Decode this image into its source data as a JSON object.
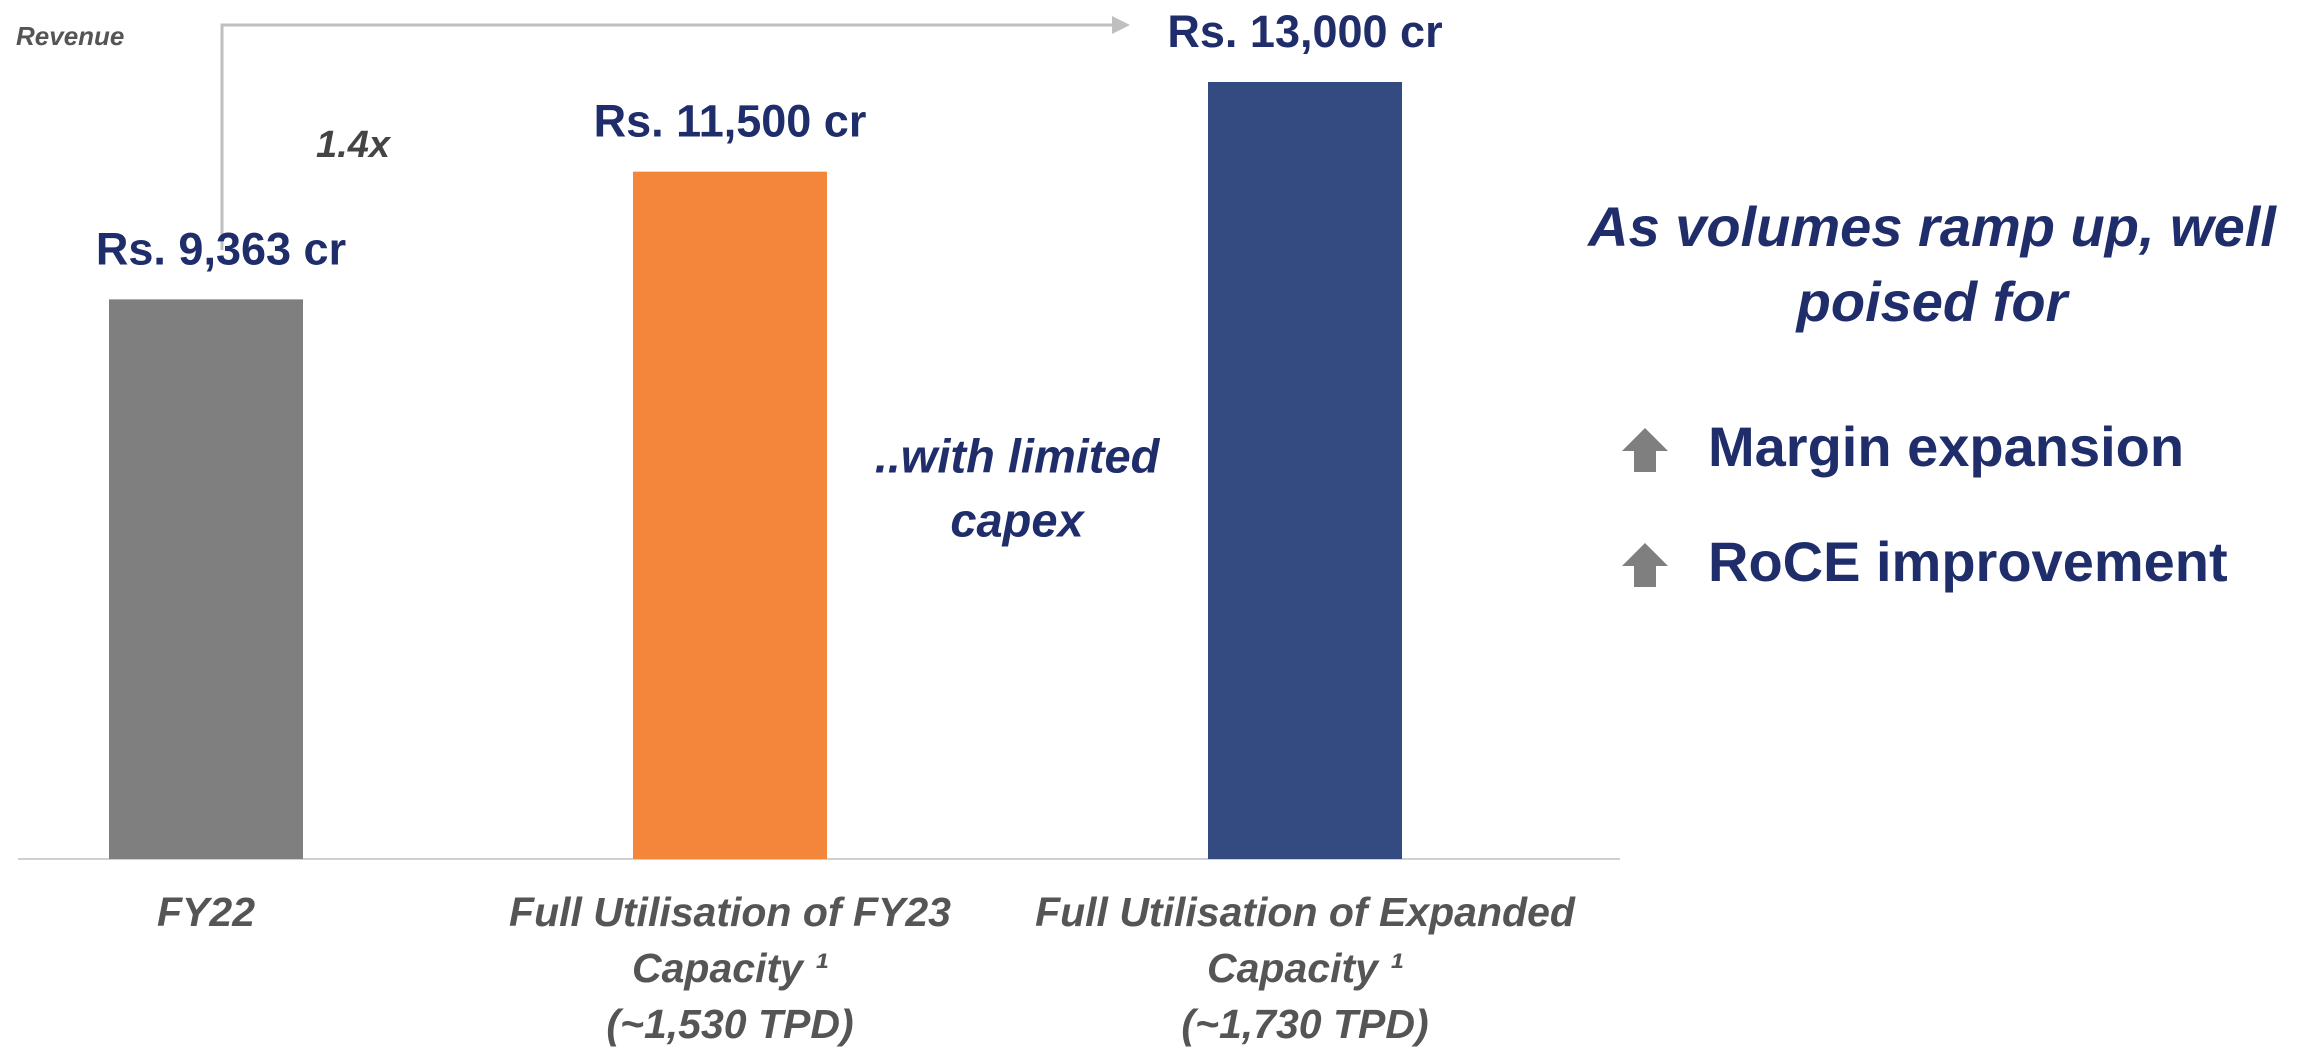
{
  "chart_data": {
    "type": "bar",
    "y_label": "Revenue",
    "growth_label": "1.4x",
    "note": [
      "..with limited",
      "capex"
    ],
    "categories": [
      [
        "FY22"
      ],
      [
        "Full Utilisation of FY23",
        "Capacity ¹",
        "(~1,530 TPD)"
      ],
      [
        "Full Utilisation of Expanded",
        "Capacity ¹",
        "(~1,730 TPD)"
      ]
    ],
    "values": [
      9363,
      11500,
      13000
    ],
    "value_labels": [
      "Rs. 9,363 cr",
      "Rs. 11,500 cr",
      "Rs. 13,000 cr"
    ],
    "colors": [
      "#7f7f7f",
      "#f4863b",
      "#344b82"
    ]
  },
  "side_panel": {
    "heading": [
      "As volumes ramp up, well",
      "poised for"
    ],
    "bullets": [
      "Margin expansion",
      "RoCE improvement"
    ]
  }
}
